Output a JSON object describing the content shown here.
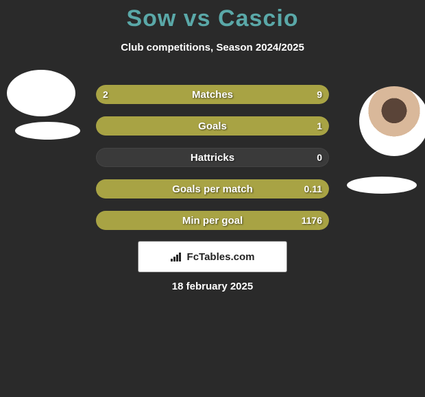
{
  "title": "Sow vs Cascio",
  "subtitle": "Club competitions, Season 2024/2025",
  "date": "18 february 2025",
  "watermark": "FcTables.com",
  "colors": {
    "bar_fill": "#a8a344",
    "bar_bg": "#3a3a3a",
    "title": "#5aa8a8",
    "background": "#2a2a2a"
  },
  "bars": [
    {
      "label": "Matches",
      "left": "2",
      "right": "9",
      "leftPct": 18,
      "rightPct": 82
    },
    {
      "label": "Goals",
      "left": "",
      "right": "1",
      "leftPct": 0,
      "rightPct": 100
    },
    {
      "label": "Hattricks",
      "left": "",
      "right": "0",
      "leftPct": 0,
      "rightPct": 0
    },
    {
      "label": "Goals per match",
      "left": "",
      "right": "0.11",
      "leftPct": 0,
      "rightPct": 100
    },
    {
      "label": "Min per goal",
      "left": "",
      "right": "1176",
      "leftPct": 0,
      "rightPct": 100
    }
  ]
}
